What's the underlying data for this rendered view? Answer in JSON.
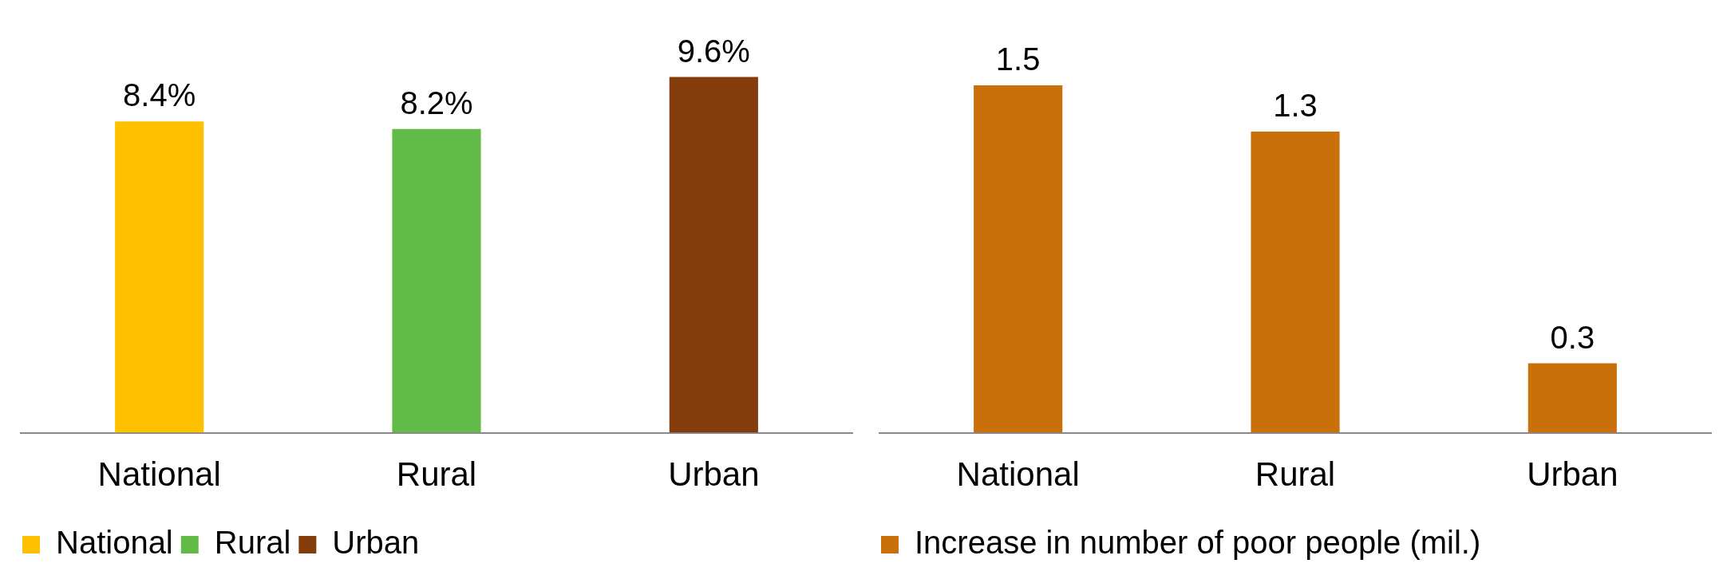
{
  "chart_data": [
    {
      "type": "bar",
      "categories": [
        "National",
        "Rural",
        "Urban"
      ],
      "series": [
        {
          "name": "National",
          "color": "#ffc000",
          "values": [
            8.4,
            null,
            null
          ],
          "value_labels": [
            "8.4%",
            null,
            null
          ]
        },
        {
          "name": "Rural",
          "color": "#62bb46",
          "values": [
            null,
            8.2,
            null
          ],
          "value_labels": [
            null,
            "8.2%",
            null
          ]
        },
        {
          "name": "Urban",
          "color": "#843c0c",
          "values": [
            null,
            null,
            9.6
          ],
          "value_labels": [
            null,
            null,
            "9.6%"
          ]
        }
      ],
      "tick_labels": "x",
      "legend": "bottom"
    },
    {
      "type": "bar",
      "categories": [
        "National",
        "Rural",
        "Urban"
      ],
      "series": [
        {
          "name": "Increase in number of poor people (mil.)",
          "color": "#c9700a",
          "values": [
            1.5,
            1.3,
            0.3
          ]
        }
      ],
      "data_labels": true,
      "tick_labels": "x",
      "legend": "bottom"
    }
  ]
}
